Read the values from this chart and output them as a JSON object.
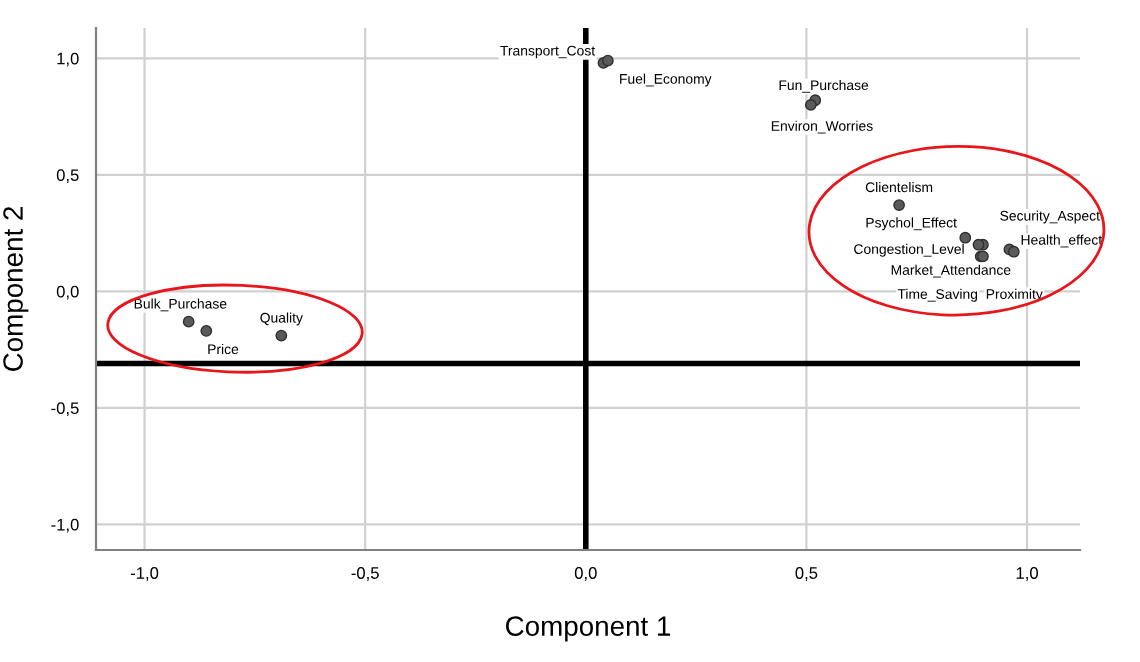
{
  "chart_data": {
    "type": "scatter",
    "xlabel": "Component 1",
    "ylabel": "Component 2",
    "xlim": [
      -1.11,
      1.12
    ],
    "ylim": [
      -1.11,
      1.13
    ],
    "xticks": [
      {
        "value": -1.0,
        "label": "-1,0"
      },
      {
        "value": -0.5,
        "label": "-0,5"
      },
      {
        "value": 0.0,
        "label": "0,0"
      },
      {
        "value": 0.5,
        "label": "0,5"
      },
      {
        "value": 1.0,
        "label": "1,0"
      }
    ],
    "yticks": [
      {
        "value": -1.0,
        "label": "-1,0"
      },
      {
        "value": -0.5,
        "label": "-0,5"
      },
      {
        "value": 0.0,
        "label": "0,0"
      },
      {
        "value": 0.5,
        "label": "0,5"
      },
      {
        "value": 1.0,
        "label": "1,0"
      }
    ],
    "grid": true,
    "marker": "circle",
    "legend": false,
    "series": [
      {
        "color": "#5a5a5a",
        "x": [
          -0.9,
          -0.86,
          -0.69
        ],
        "values": [
          -0.13,
          -0.17,
          -0.19
        ]
      },
      {
        "color": "#5a5a5a",
        "x": [
          0.71,
          0.86,
          0.9,
          0.89,
          0.895,
          0.9,
          0.96,
          0.97
        ],
        "values": [
          0.37,
          0.23,
          0.2,
          0.2,
          0.15,
          0.15,
          0.18,
          0.17
        ]
      },
      {
        "color": "#5a5a5a",
        "x": [
          0.04,
          0.05,
          0.52,
          0.51
        ],
        "values": [
          0.98,
          0.99,
          0.82,
          0.8
        ]
      }
    ],
    "annotations": [
      {
        "text": "Bulk_Purchase",
        "x": -0.9,
        "y": -0.13
      },
      {
        "text": "Price",
        "x": -0.86,
        "y": -0.17
      },
      {
        "text": "Quality",
        "x": -0.69,
        "y": -0.19
      },
      {
        "text": "Clientelism",
        "x": 0.71,
        "y": 0.37
      },
      {
        "text": "Psychol_Effect",
        "x": 0.86,
        "y": 0.23
      },
      {
        "text": "Security_Aspect",
        "x": 0.9,
        "y": 0.2
      },
      {
        "text": "Congestion_Level",
        "x": 0.89,
        "y": 0.2
      },
      {
        "text": "Time_Saving",
        "x": 0.895,
        "y": 0.15
      },
      {
        "text": "Proximity",
        "x": 0.9,
        "y": 0.15
      },
      {
        "text": "Health_effect",
        "x": 0.96,
        "y": 0.18
      },
      {
        "text": "Market_Attendance",
        "x": 0.97,
        "y": 0.17
      },
      {
        "text": "Transport_Cost",
        "x": 0.04,
        "y": 0.98
      },
      {
        "text": "Fuel_Economy",
        "x": 0.05,
        "y": 0.99
      },
      {
        "text": "Fun_Purchase",
        "x": 0.52,
        "y": 0.82
      },
      {
        "text": "Environ_Worries",
        "x": 0.51,
        "y": 0.8
      }
    ],
    "ref_lines": [
      {
        "axis": "x",
        "value": 0.0,
        "color": "#000000"
      },
      {
        "axis": "y",
        "value": -0.31,
        "color": "#000000"
      }
    ]
  }
}
